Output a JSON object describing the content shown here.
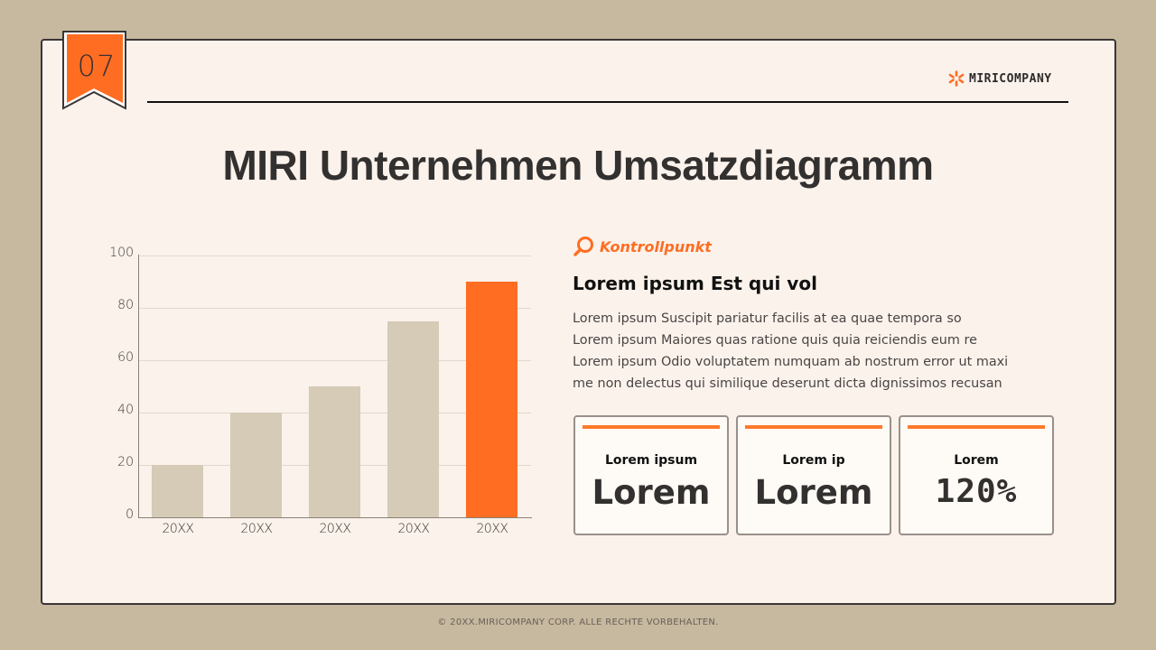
{
  "badge": {
    "number": "07",
    "color": "#ff6d22"
  },
  "logo": {
    "icon": "asterisk-burst-icon",
    "text": "MIRICOMPANY",
    "icon_color": "#ff6d22"
  },
  "title": "MIRI Unternehmen Umsatzdiagramm",
  "chart_data": {
    "type": "bar",
    "title": "",
    "xlabel": "",
    "ylabel": "",
    "categories": [
      "20XX",
      "20XX",
      "20XX",
      "20XX",
      "20XX"
    ],
    "values": [
      20,
      40,
      50,
      75,
      90
    ],
    "ylim": [
      0,
      100
    ],
    "yticks": [
      0,
      20,
      40,
      60,
      80,
      100
    ],
    "grid": true,
    "legend": null,
    "colors": [
      "#d5cbb6",
      "#d5cbb6",
      "#d5cbb6",
      "#d5cbb6",
      "#ff6d22"
    ],
    "highlight_index": 4
  },
  "checkpoint": {
    "icon": "search-icon",
    "label": "Kontrollpunkt",
    "color": "#ff6d22"
  },
  "content": {
    "subhead": "Lorem ipsum Est qui vol",
    "lines": [
      "Lorem ipsum Suscipit pariatur facilis at ea quae tempora so",
      "Lorem ipsum Maiores quas ratione quis quia reiciendis eum re",
      "Lorem ipsum Odio voluptatem numquam ab nostrum error ut maxi",
      "me non delectus qui similique deserunt dicta dignissimos recusan"
    ]
  },
  "cards": [
    {
      "label": "Lorem ipsum",
      "value": "Lorem"
    },
    {
      "label": "Lorem ip",
      "value": "Lorem"
    },
    {
      "label": "Lorem",
      "value": "120%"
    }
  ],
  "footer": "© 20XX.MIRICOMPANY CORP. ALLE RECHTE VORBEHALTEN."
}
